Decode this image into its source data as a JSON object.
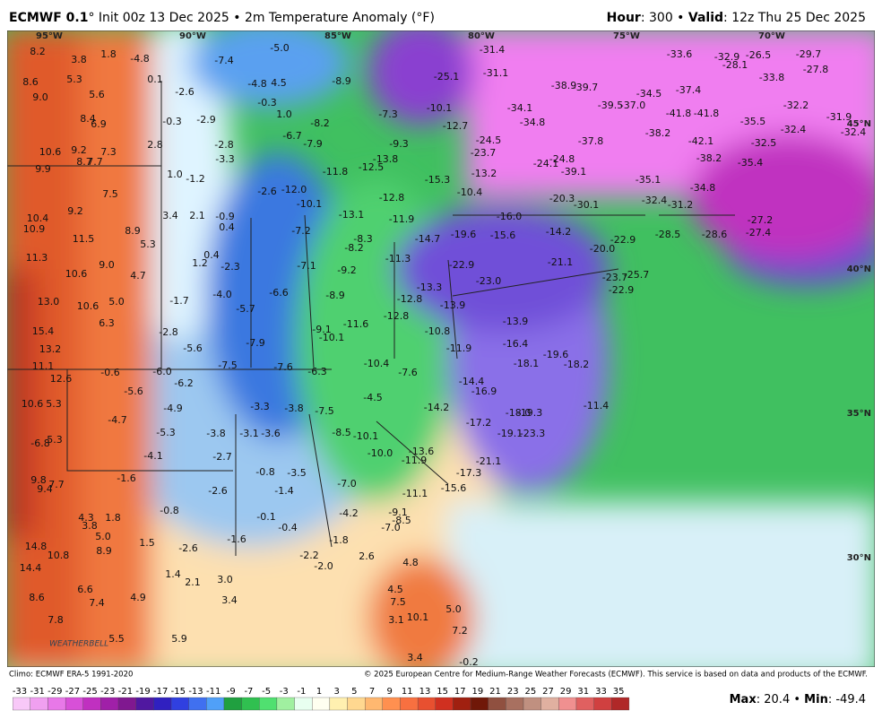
{
  "header": {
    "model": "ECMWF 0.1",
    "description": "° Init 00z 13 Dec 2025 • 2m Temperature Anomaly (°F)",
    "hour_label": "Hour",
    "hour_text": ": 300 • ",
    "valid_label": "Valid",
    "valid_text": ": 12z Thu 25 Dec 2025"
  },
  "map": {
    "longitudes": [
      "95°W",
      "90°W",
      "85°W",
      "80°W",
      "75°W",
      "70°W"
    ],
    "latitudes": [
      "45°N",
      "40°N",
      "35°N",
      "30°N"
    ],
    "logo": "WEATHERBELL",
    "labels": [
      "8.2",
      "3.8",
      "1.8",
      "-4.8",
      "-7.4",
      "-5.0",
      "-31.4",
      "-33.6",
      "-32.9",
      "-26.5",
      "-29.7",
      "-28.1",
      "-27.8",
      "8.6",
      "5.3",
      "0.1",
      "-4.8",
      "4.5",
      "-8.9",
      "-25.1",
      "-31.1",
      "-33.8",
      "-38.9",
      "-39.7",
      "-37.4",
      "-34.5",
      "-2.6",
      "9.0",
      "5.6",
      "-0.3",
      "1.0",
      "-7.3",
      "-10.1",
      "-12.7",
      "-34.1",
      "-39.5",
      "-37.0",
      "-41.8",
      "-41.8",
      "-32.2",
      "-31.9",
      "8.4",
      "6.9",
      "-0.3",
      "-2.9",
      "-8.2",
      "-34.8",
      "-35.5",
      "-32.4",
      "-32.4",
      "-6.7",
      "-7.9",
      "-9.3",
      "-24.5",
      "-37.8",
      "-38.2",
      "-42.1",
      "-32.5",
      "-2.8",
      "2.8",
      "10.6",
      "9.2",
      "7.3",
      "-13.8",
      "-23.7",
      "-24.8",
      "-24.1",
      "-39.1",
      "-38.2",
      "-35.4",
      "-3.3",
      "8.7",
      "7.7",
      "9.9",
      "-11.8",
      "-12.5",
      "-13.2",
      "-35.1",
      "1.0",
      "-1.2",
      "-15.3",
      "-2.6",
      "-12.0",
      "-10.4",
      "-20.3",
      "-34.8",
      "-12.8",
      "-30.1",
      "-32.4",
      "-31.2",
      "7.5",
      "-10.1",
      "-13.1",
      "9.2",
      "3.4",
      "2.1",
      "-0.9",
      "-11.9",
      "-16.0",
      "-27.2",
      "10.4",
      "10.9",
      "0.4",
      "-7.2",
      "-14.2",
      "-28.5",
      "-28.6",
      "-27.4",
      "8.9",
      "-8.3",
      "-19.6",
      "-15.6",
      "-22.9",
      "-14.7",
      "11.5",
      "5.3",
      "-8.2",
      "-20.0",
      "11.3",
      "0.4",
      "-11.3",
      "-22.9",
      "-21.1",
      "1.2",
      "-2.3",
      "10.6",
      "9.0",
      "-7.1",
      "-9.2",
      "-23.0",
      "-23.7",
      "-25.7",
      "4.7",
      "-13.3",
      "-22.9",
      "-6.6",
      "13.0",
      "10.6",
      "5.0",
      "-1.7",
      "-4.0",
      "-8.9",
      "-12.8",
      "-13.9",
      "-5.7",
      "-12.8",
      "6.3",
      "-11.6",
      "-13.9",
      "-9.1",
      "-10.8",
      "15.4",
      "-2.8",
      "-10.1",
      "-16.4",
      "-7.9",
      "-5.6",
      "-11.9",
      "13.2",
      "-19.6",
      "-18.1",
      "-18.2",
      "-7.5",
      "-7.6",
      "-10.4",
      "11.1",
      "-0.6",
      "-6.0",
      "-6.3",
      "-7.6",
      "12.6",
      "-6.2",
      "-14.4",
      "-5.6",
      "-16.9",
      "-4.5",
      "-4.9",
      "10.6",
      "5.3",
      "-3.3",
      "-3.8",
      "-7.5",
      "-14.2",
      "-11.4",
      "-18.0",
      "-19.3",
      "-4.7",
      "-17.2",
      "-5.3",
      "-3.8",
      "-3.1",
      "-3.6",
      "-8.5",
      "-10.1",
      "-19.1",
      "-23.3",
      "-6.8",
      "5.3",
      "-13.6",
      "-10.0",
      "-4.1",
      "-2.7",
      "-11.9",
      "-21.1",
      "-0.8",
      "-3.5",
      "-1.6",
      "-17.3",
      "-7.0",
      "9.8",
      "9.4",
      "7.7",
      "-2.6",
      "-1.4",
      "-15.6",
      "-11.1",
      "-0.8",
      "-4.2",
      "-9.1",
      "-8.5",
      "-0.1",
      "4.3",
      "1.8",
      "3.8",
      "-0.4",
      "-7.0",
      "5.0",
      "1.5",
      "-1.8",
      "-1.6",
      "-2.6",
      "14.8",
      "8.9",
      "10.8",
      "-2.2",
      "2.6",
      "4.8",
      "-2.0",
      "14.4",
      "1.4",
      "2.1",
      "3.0",
      "4.5",
      "6.6",
      "8.6",
      "7.4",
      "4.9",
      "3.4",
      "7.5",
      "5.0",
      "10.1",
      "3.1",
      "7.8",
      "7.2",
      "5.5",
      "5.9",
      "-0.2",
      "3.4"
    ]
  },
  "footer": {
    "climo": "Climo: ECMWF ERA-5 1991-2020",
    "copyright": "© 2025 European Centre for Medium-Range Weather Forecasts (ECMWF). This service is based on data and products of the ECMWF."
  },
  "colorbar": {
    "ticks": [
      -33,
      -31,
      -29,
      -27,
      -25,
      -23,
      -21,
      -19,
      -17,
      -15,
      -13,
      -11,
      -9,
      -7,
      -5,
      -3,
      -1,
      1,
      3,
      5,
      7,
      9,
      11,
      13,
      15,
      17,
      19,
      21,
      23,
      25,
      27,
      29,
      31,
      33,
      35
    ],
    "colors": [
      "#f8c8f8",
      "#f0a0f0",
      "#e878e8",
      "#d850d8",
      "#c030c0",
      "#a020a8",
      "#801890",
      "#5018a0",
      "#3020c0",
      "#3040e0",
      "#4070f0",
      "#50a0f8",
      "#20a040",
      "#30c050",
      "#50e070",
      "#a0f0a0",
      "#e8fff0",
      "#fffff0",
      "#fff0b0",
      "#ffd890",
      "#ffb870",
      "#ff9050",
      "#f87040",
      "#e85030",
      "#d03020",
      "#a02010",
      "#701808",
      "#905040",
      "#a87060",
      "#c09080",
      "#e0b0a0",
      "#f09090",
      "#e06060",
      "#d04040",
      "#b02828"
    ]
  },
  "stats": {
    "max_label": "Max",
    "max": 20.4,
    "separator": "•",
    "min_label": "Min",
    "min": -49.4,
    "colon": ":"
  }
}
